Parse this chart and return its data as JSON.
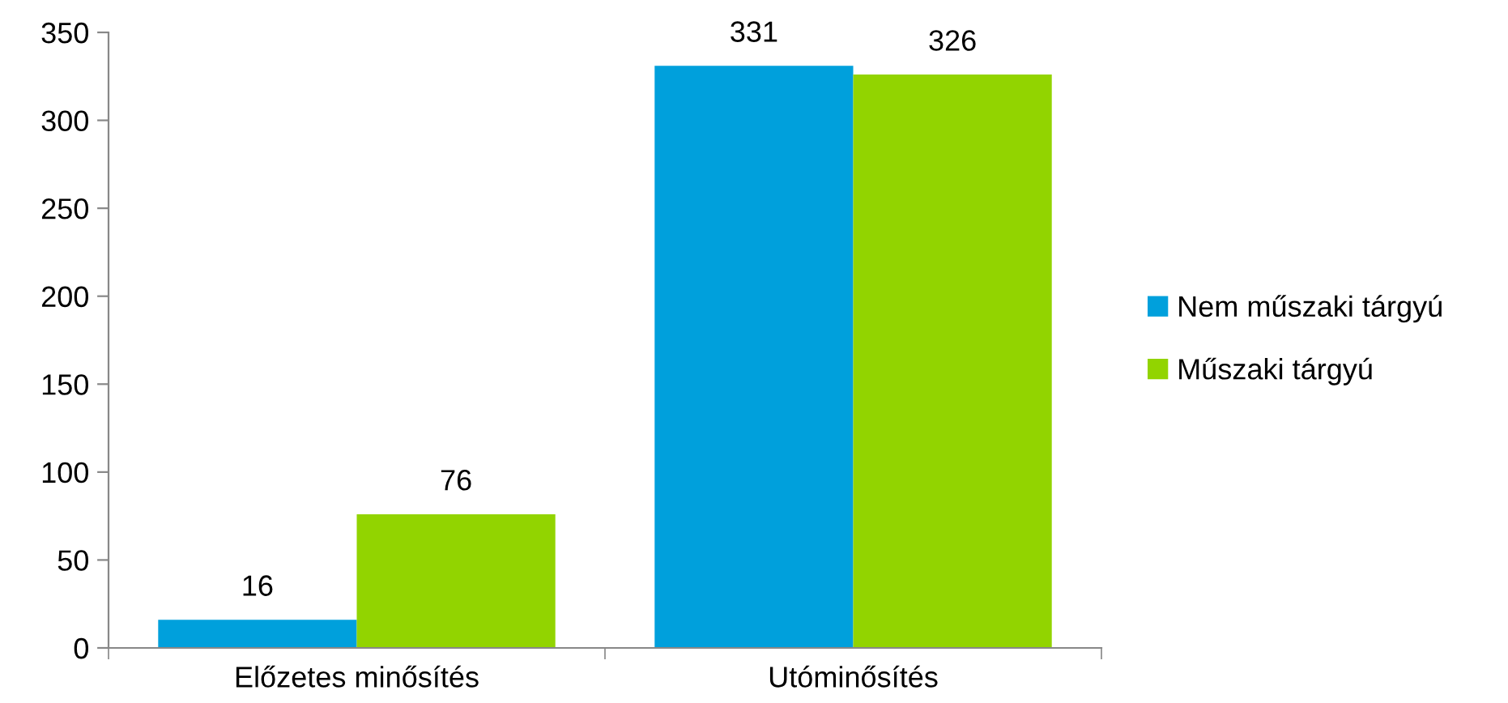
{
  "chart_data": {
    "type": "bar",
    "categories": [
      "Előzetes minősítés",
      "Utóminősítés"
    ],
    "series": [
      {
        "name": "Nem műszaki tárgyú",
        "color": "#00a0dc",
        "values": [
          16,
          331
        ]
      },
      {
        "name": "Műszaki tárgyú",
        "color": "#92d400",
        "values": [
          76,
          326
        ]
      }
    ],
    "ylim": [
      0,
      350
    ],
    "yticks": [
      0,
      50,
      100,
      150,
      200,
      250,
      300,
      350
    ],
    "grid": false,
    "legend": "right",
    "data_labels": true
  }
}
